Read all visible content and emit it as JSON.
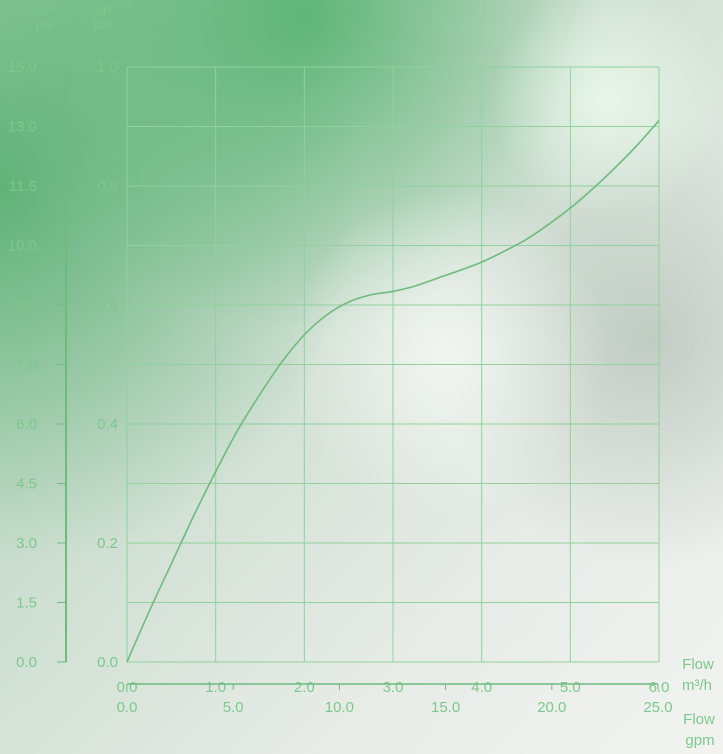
{
  "chart_data": {
    "type": "line",
    "title": "",
    "colors": {
      "line": "#6dbb7d",
      "grid": "#8fd29b",
      "text": "#7cc88a"
    },
    "grid": true,
    "psi_axis": {
      "label": "ΔP",
      "unit": "psi",
      "ticks": [
        {
          "label": "15.0",
          "bar": 1.0
        },
        {
          "label": "13.0",
          "bar": 0.9
        },
        {
          "label": "11.5",
          "bar": 0.8
        },
        {
          "label": "10.0",
          "bar": 0.7
        },
        {
          "label": "8.5",
          "bar": 0.6
        },
        {
          "label": "7.0",
          "bar": 0.5
        },
        {
          "label": "6.0",
          "bar": 0.4
        },
        {
          "label": "4.5",
          "bar": 0.3
        },
        {
          "label": "3.0",
          "bar": 0.2
        },
        {
          "label": "1.5",
          "bar": 0.1
        },
        {
          "label": "0.0",
          "bar": 0.0
        }
      ]
    },
    "bar_axis": {
      "label": "ΔP",
      "unit": "bar",
      "ylim": [
        0,
        1.0
      ],
      "ticks": [
        {
          "label": "1.0",
          "value": 1.0
        },
        {
          "label": "0.8",
          "value": 0.8
        },
        {
          "label": "0.6",
          "value": 0.6
        },
        {
          "label": "0.4",
          "value": 0.4
        },
        {
          "label": "0.2",
          "value": 0.2
        },
        {
          "label": "0.0",
          "value": 0.0
        }
      ]
    },
    "x_axis": {
      "label": "Flow",
      "unit": "m³/h",
      "xlim": [
        0,
        6.0
      ],
      "ticks": [
        {
          "label": "0.0",
          "value": 0
        },
        {
          "label": "1.0",
          "value": 1
        },
        {
          "label": "2.0",
          "value": 2
        },
        {
          "label": "3.0",
          "value": 3
        },
        {
          "label": "4.0",
          "value": 4
        },
        {
          "label": "5.0",
          "value": 5
        },
        {
          "label": "6.0",
          "value": 6
        }
      ]
    },
    "gpm_axis": {
      "label": "Flow",
      "unit": "gpm",
      "xlim": [
        0,
        25.0
      ],
      "ticks": [
        {
          "label": "0.0",
          "value": 0
        },
        {
          "label": "5.0",
          "value": 5
        },
        {
          "label": "10.0",
          "value": 10
        },
        {
          "label": "15.0",
          "value": 15
        },
        {
          "label": "20.0",
          "value": 20
        },
        {
          "label": "25.0",
          "value": 25
        }
      ]
    },
    "series": [
      {
        "x": [
          0,
          0.25,
          0.5,
          0.75,
          1.0,
          1.25,
          1.5,
          1.75,
          2.0,
          2.25,
          2.5,
          2.75,
          3.0,
          3.25,
          3.5,
          3.75,
          4.0,
          4.25,
          4.5,
          4.75,
          5.0,
          5.25,
          5.5,
          5.75,
          6.0
        ],
        "y": [
          0,
          0.085,
          0.165,
          0.245,
          0.32,
          0.39,
          0.45,
          0.505,
          0.55,
          0.583,
          0.605,
          0.617,
          0.623,
          0.632,
          0.645,
          0.658,
          0.672,
          0.69,
          0.71,
          0.735,
          0.763,
          0.795,
          0.83,
          0.868,
          0.91
        ]
      }
    ]
  }
}
